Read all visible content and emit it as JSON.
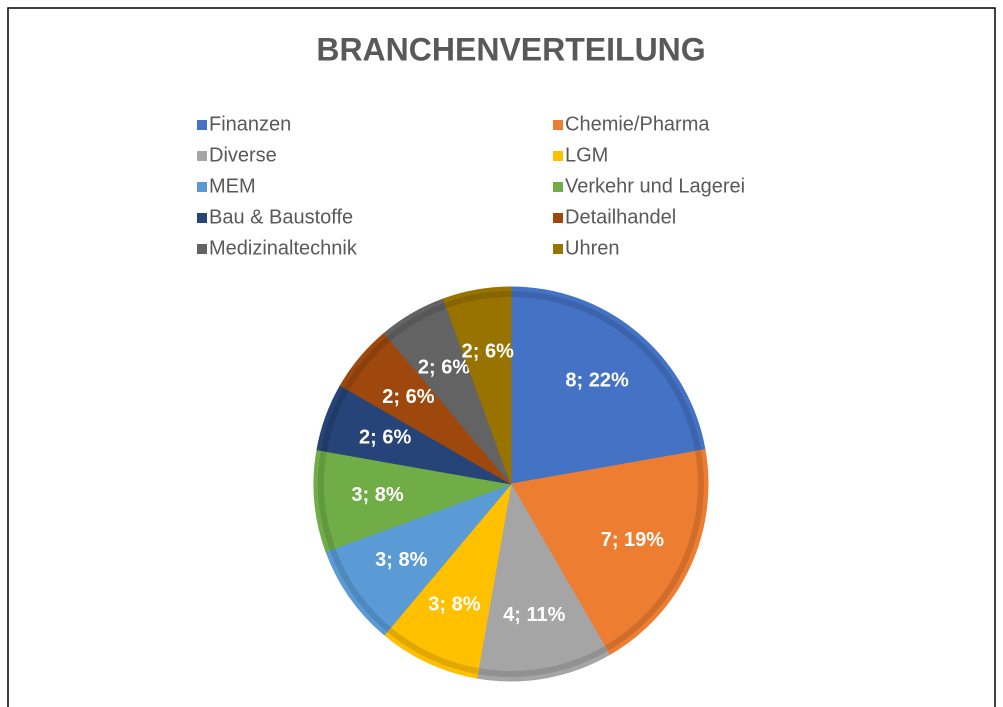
{
  "chart_data": {
    "type": "pie",
    "title": "BRANCHENVERTEILUNG",
    "categories": [
      "Finanzen",
      "Chemie/Pharma",
      "Diverse",
      "LGM",
      "MEM",
      "Verkehr und Lagerei",
      "Bau & Baustoffe",
      "Detailhandel",
      "Medizinaltechnik",
      "Uhren"
    ],
    "values": [
      8,
      7,
      4,
      3,
      3,
      3,
      2,
      2,
      2,
      2
    ],
    "value_labels": [
      "8; 22%",
      "7; 19%",
      "4; 11%",
      "3; 8%",
      "3; 8%",
      "3; 8%",
      "2; 6%",
      "2; 6%",
      "2; 6%",
      "2; 6%"
    ],
    "colors": [
      "#4472c4",
      "#ed7d31",
      "#a5a5a5",
      "#ffc000",
      "#5b9bd5",
      "#70ad47",
      "#264478",
      "#9e480e",
      "#636363",
      "#997300"
    ]
  }
}
